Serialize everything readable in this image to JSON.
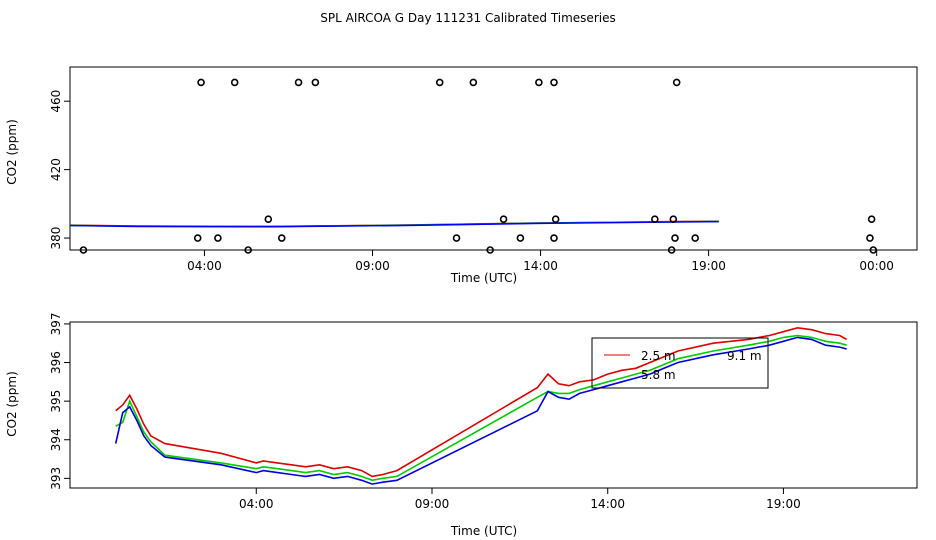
{
  "title": "SPL AIRCOA G  Day 111231  Calibrated Timeseries",
  "chart_data": [
    {
      "type": "scatter",
      "ylabel": "CO2 (ppm)",
      "xlabel": "Time (UTC)",
      "xlim": [
        0,
        25.2
      ],
      "ylim": [
        373,
        480
      ],
      "x_ticks": [
        4,
        9,
        14,
        19,
        24
      ],
      "x_tick_labels": [
        "04:00",
        "09:00",
        "14:00",
        "19:00",
        "00:00"
      ],
      "y_ticks": [
        380,
        420,
        460
      ],
      "y_tick_labels": [
        "380",
        "420",
        "460"
      ],
      "points": [
        {
          "x": 0.4,
          "y": 373
        },
        {
          "x": 3.8,
          "y": 380
        },
        {
          "x": 3.9,
          "y": 471
        },
        {
          "x": 4.4,
          "y": 380
        },
        {
          "x": 4.9,
          "y": 471
        },
        {
          "x": 5.3,
          "y": 373
        },
        {
          "x": 5.9,
          "y": 391
        },
        {
          "x": 6.3,
          "y": 380
        },
        {
          "x": 6.8,
          "y": 471
        },
        {
          "x": 7.3,
          "y": 471
        },
        {
          "x": 11.0,
          "y": 471
        },
        {
          "x": 11.5,
          "y": 380
        },
        {
          "x": 12.0,
          "y": 471
        },
        {
          "x": 12.5,
          "y": 373
        },
        {
          "x": 12.9,
          "y": 391
        },
        {
          "x": 13.4,
          "y": 380
        },
        {
          "x": 13.95,
          "y": 471
        },
        {
          "x": 14.4,
          "y": 380
        },
        {
          "x": 14.4,
          "y": 471
        },
        {
          "x": 14.45,
          "y": 391
        },
        {
          "x": 17.4,
          "y": 391
        },
        {
          "x": 17.9,
          "y": 373
        },
        {
          "x": 17.95,
          "y": 391
        },
        {
          "x": 18.0,
          "y": 380
        },
        {
          "x": 18.05,
          "y": 471
        },
        {
          "x": 18.6,
          "y": 380
        },
        {
          "x": 23.8,
          "y": 380
        },
        {
          "x": 23.85,
          "y": 391
        },
        {
          "x": 23.9,
          "y": 373
        }
      ],
      "series": [
        {
          "name": "2.5 m",
          "color": "#ff0000",
          "x": [
            0,
            2,
            6,
            10,
            14,
            18,
            19.3
          ],
          "y": [
            387.5,
            387.0,
            386.8,
            387.6,
            388.8,
            389.6,
            389.8
          ]
        },
        {
          "name": "5.8 m",
          "color": "#00cc00",
          "x": [
            0,
            2,
            6,
            10,
            14,
            18,
            19.3
          ],
          "y": [
            387.4,
            386.9,
            386.7,
            387.5,
            388.7,
            389.5,
            389.7
          ]
        },
        {
          "name": "9.1 m",
          "color": "#0000ff",
          "x": [
            0,
            2,
            6,
            10,
            14,
            18,
            19.3
          ],
          "y": [
            387.3,
            386.8,
            386.6,
            387.4,
            388.6,
            389.4,
            389.6
          ]
        }
      ]
    },
    {
      "type": "line",
      "ylabel": "CO2 (ppm)",
      "xlabel": "Time (UTC)",
      "xlim": [
        -1.3,
        22.8
      ],
      "ylim": [
        392.75,
        397.05
      ],
      "x_ticks": [
        4,
        9,
        14,
        19
      ],
      "x_tick_labels": [
        "04:00",
        "09:00",
        "14:00",
        "19:00"
      ],
      "y_ticks": [
        393,
        394,
        395,
        396,
        397
      ],
      "y_tick_labels": [
        "393",
        "394",
        "395",
        "396",
        "397"
      ],
      "legend": [
        "2.5 m",
        "5.8 m",
        "9.1 m"
      ],
      "series": [
        {
          "name": "2.5 m",
          "color": "#dd0000",
          "x": [
            0.0,
            0.2,
            0.4,
            0.6,
            0.8,
            1.0,
            1.4,
            3.0,
            4.0,
            4.2,
            4.6,
            5.0,
            5.4,
            5.8,
            6.2,
            6.6,
            7.0,
            7.3,
            7.6,
            8.0,
            12.0,
            12.3,
            12.6,
            12.9,
            13.2,
            13.6,
            14.0,
            14.4,
            14.8,
            15.2,
            15.6,
            16.0,
            17.0,
            18.0,
            18.6,
            19.0,
            19.4,
            19.8,
            20.2,
            20.6,
            20.8
          ],
          "y": [
            394.75,
            394.9,
            395.15,
            394.8,
            394.4,
            394.1,
            393.9,
            393.65,
            393.4,
            393.45,
            393.4,
            393.35,
            393.3,
            393.35,
            393.25,
            393.3,
            393.2,
            393.05,
            393.1,
            393.2,
            395.35,
            395.7,
            395.45,
            395.4,
            395.5,
            395.55,
            395.7,
            395.8,
            395.85,
            396.0,
            396.15,
            396.3,
            396.5,
            396.6,
            396.7,
            396.8,
            396.9,
            396.85,
            396.75,
            396.7,
            396.6
          ]
        },
        {
          "name": "5.8 m",
          "color": "#00cc00",
          "x": [
            0.0,
            0.2,
            0.4,
            0.6,
            0.8,
            1.0,
            1.4,
            3.0,
            4.0,
            4.2,
            4.6,
            5.0,
            5.4,
            5.8,
            6.2,
            6.6,
            7.0,
            7.3,
            7.6,
            8.0,
            12.0,
            12.3,
            12.6,
            12.9,
            13.2,
            13.6,
            14.0,
            14.4,
            14.8,
            15.2,
            15.6,
            16.0,
            17.0,
            18.0,
            18.6,
            19.0,
            19.4,
            19.8,
            20.2,
            20.6,
            20.8
          ],
          "y": [
            394.35,
            394.45,
            395.0,
            394.6,
            394.2,
            393.95,
            393.6,
            393.4,
            393.25,
            393.3,
            393.25,
            393.2,
            393.15,
            393.2,
            393.1,
            393.15,
            393.05,
            392.95,
            393.0,
            393.05,
            395.1,
            395.25,
            395.2,
            395.2,
            395.3,
            395.4,
            395.5,
            395.6,
            395.7,
            395.8,
            395.95,
            396.1,
            396.3,
            396.45,
            396.55,
            396.65,
            396.7,
            396.65,
            396.55,
            396.5,
            396.45
          ]
        },
        {
          "name": "9.1 m",
          "color": "#0000dd",
          "x": [
            0.0,
            0.2,
            0.4,
            0.6,
            0.8,
            1.0,
            1.4,
            3.0,
            4.0,
            4.2,
            4.6,
            5.0,
            5.4,
            5.8,
            6.2,
            6.6,
            7.0,
            7.3,
            7.6,
            8.0,
            12.0,
            12.3,
            12.6,
            12.9,
            13.2,
            13.6,
            14.0,
            14.4,
            14.8,
            15.2,
            15.6,
            16.0,
            17.0,
            18.0,
            18.6,
            19.0,
            19.4,
            19.8,
            20.2,
            20.6,
            20.8
          ],
          "y": [
            393.9,
            394.7,
            394.85,
            394.5,
            394.1,
            393.85,
            393.55,
            393.35,
            393.15,
            393.2,
            393.15,
            393.1,
            393.05,
            393.1,
            393.0,
            393.05,
            392.95,
            392.85,
            392.9,
            392.95,
            394.75,
            395.25,
            395.1,
            395.05,
            395.2,
            395.3,
            395.4,
            395.5,
            395.6,
            395.7,
            395.85,
            396.0,
            396.2,
            396.35,
            396.45,
            396.55,
            396.65,
            396.6,
            396.45,
            396.4,
            396.35
          ]
        }
      ]
    }
  ]
}
